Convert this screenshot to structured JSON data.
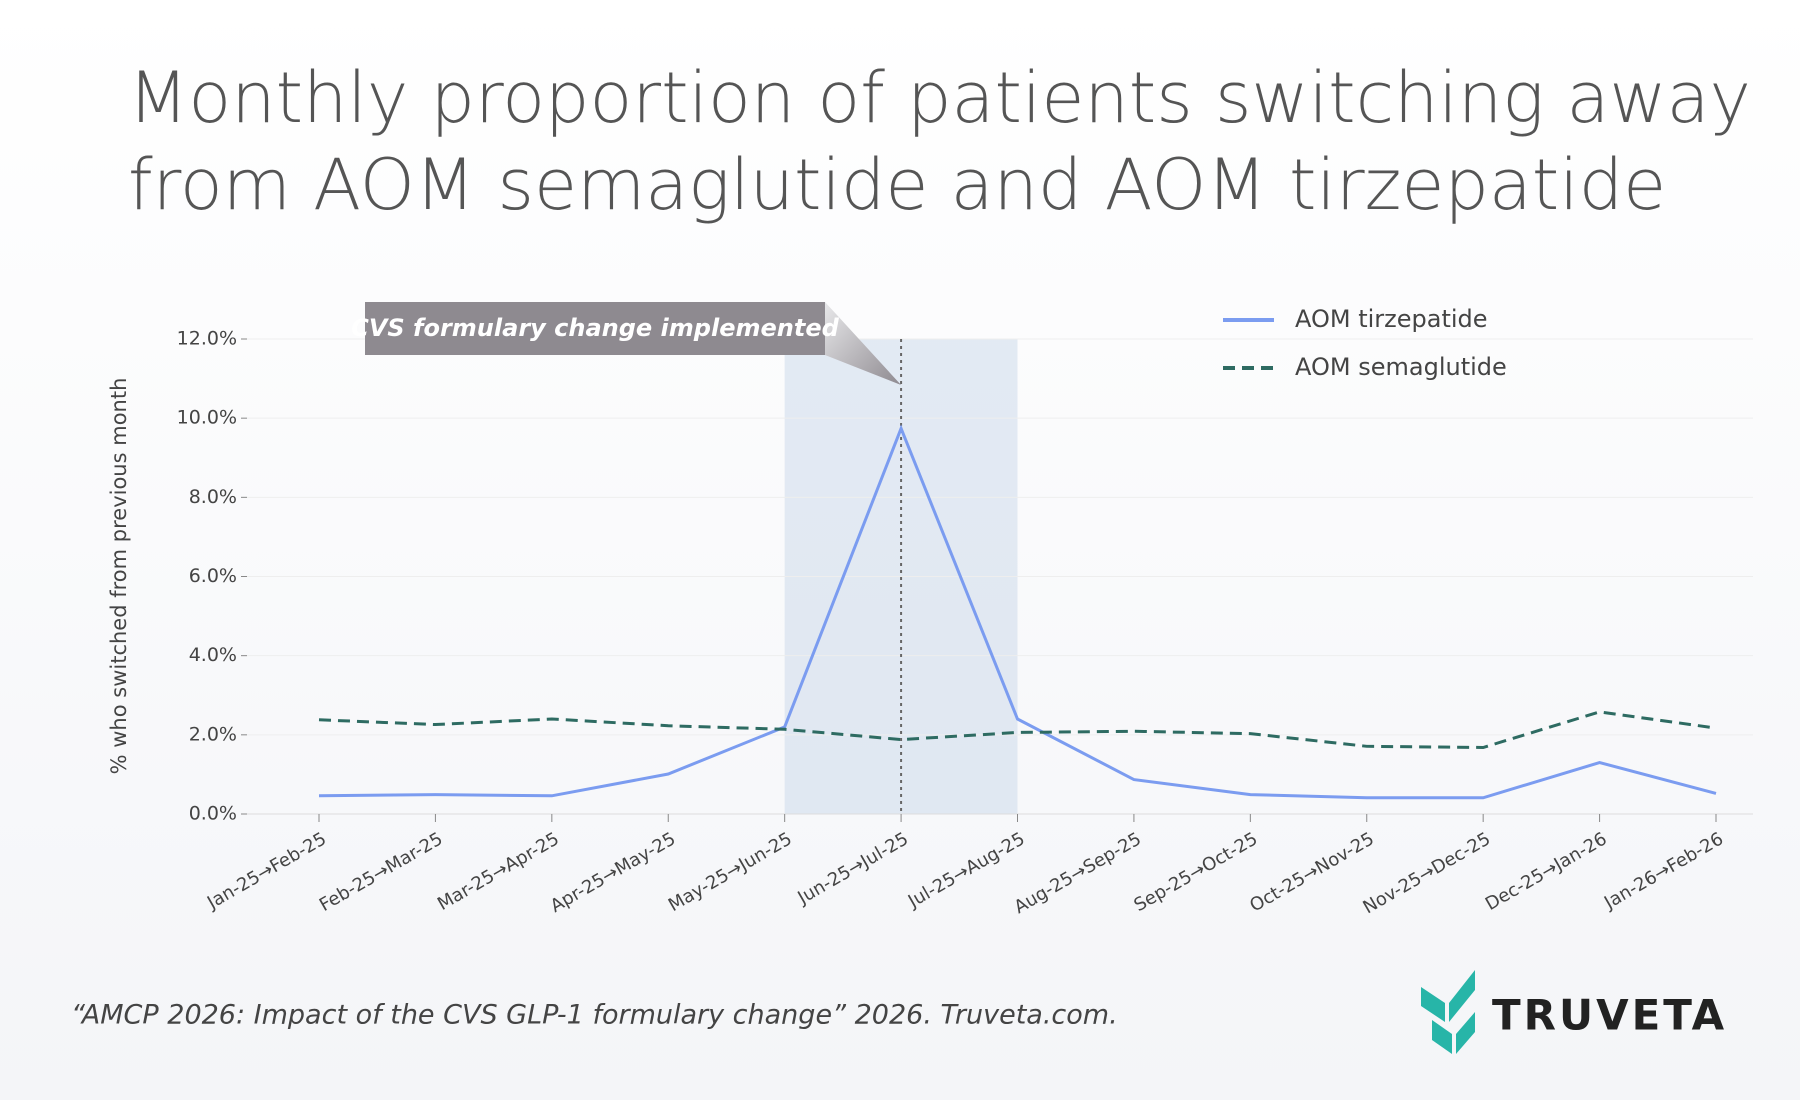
{
  "chart_data": {
    "type": "line",
    "title": [
      "Monthly proportion of patients switching away",
      "from AOM semaglutide and AOM tirzepatide"
    ],
    "y_label": "% who switched from previous month",
    "categories": [
      "Jan-25→Feb-25",
      "Feb-25→Mar-25",
      "Mar-25→Apr-25",
      "Apr-25→May-25",
      "May-25→Jun-25",
      "Jun-25→Jul-25",
      "Jul-25→Aug-25",
      "Aug-25→Sep-25",
      "Sep-25→Oct-25",
      "Oct-25→Nov-25",
      "Nov-25→Dec-25",
      "Dec-25→Jan-26",
      "Jan-26→Feb-26"
    ],
    "series": [
      {
        "name": "AOM tirzepatide",
        "color": "#7b9cf0",
        "dash": false,
        "values": [
          0.46,
          0.49,
          0.46,
          1.01,
          2.2,
          9.74,
          2.4,
          0.87,
          0.49,
          0.41,
          0.41,
          1.3,
          0.52
        ]
      },
      {
        "name": "AOM semaglutide",
        "color": "#2e6b62",
        "dash": true,
        "values": [
          2.38,
          2.26,
          2.4,
          2.23,
          2.14,
          1.88,
          2.06,
          2.09,
          2.03,
          1.71,
          1.68,
          2.58,
          2.17
        ]
      }
    ],
    "ylim": [
      0,
      12
    ],
    "yticks": [
      {
        "value": 0,
        "label": "0.0%"
      },
      {
        "value": 2,
        "label": "2.0%"
      },
      {
        "value": 4,
        "label": "4.0%"
      },
      {
        "value": 6,
        "label": "6.0%"
      },
      {
        "value": 8,
        "label": "8.0%"
      },
      {
        "value": 10,
        "label": "10.0%"
      },
      {
        "value": 12,
        "label": "12.0%"
      }
    ],
    "grid": true,
    "legend": "upper right",
    "annotation": {
      "text": "CVS formulary change implemented",
      "at": "Jun-25→Jul-25",
      "span": [
        "May-25→Jun-25",
        "Jul-25→Aug-25"
      ]
    },
    "source": "“AMCP 2026: Impact of the CVS GLP-1 formulary change” 2026. Truveta.com.",
    "logo": "TRUVETA"
  }
}
